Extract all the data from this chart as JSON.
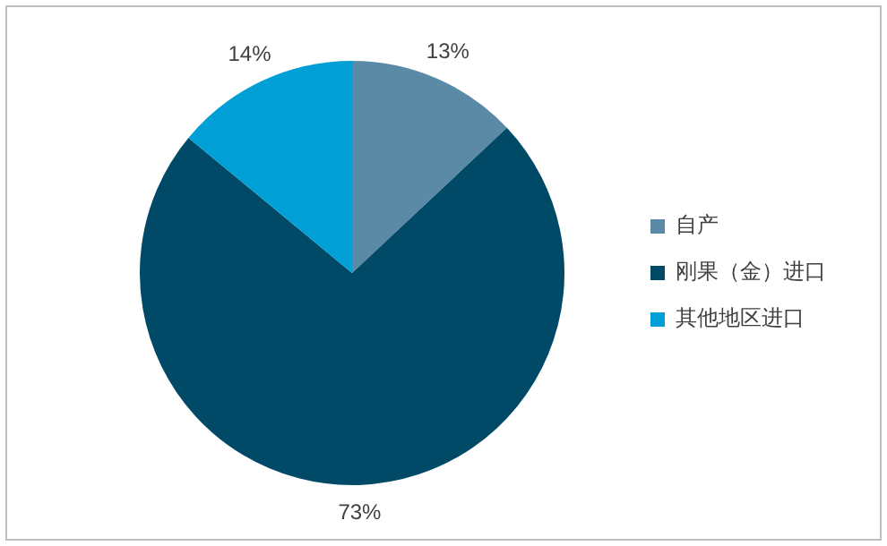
{
  "chart_data": {
    "type": "pie",
    "categories": [
      "自产",
      "刚果（金）进口",
      "其他地区进口"
    ],
    "values": [
      13,
      73,
      14
    ],
    "colors": [
      "#5a8aa6",
      "#004a68",
      "#00a0d6"
    ],
    "value_labels": [
      "13%",
      "73%",
      "14%"
    ],
    "legend": "right"
  }
}
